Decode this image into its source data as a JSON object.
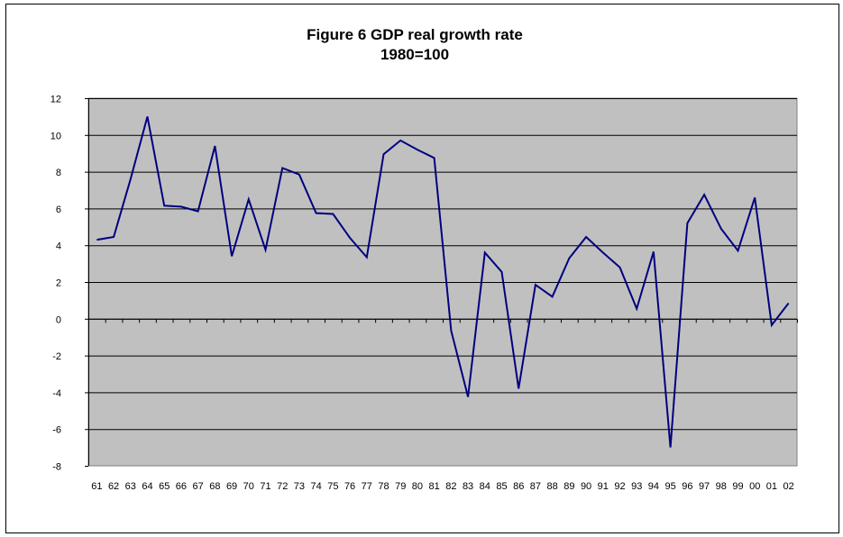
{
  "chart_data": {
    "type": "line",
    "title": "Figure 6 GDP real growth rate",
    "subtitle": "1980=100",
    "xlabel": "",
    "ylabel": "",
    "ylim": [
      -8,
      12
    ],
    "yticks": [
      12,
      10,
      8,
      6,
      4,
      2,
      0,
      -2,
      -4,
      -6,
      -8
    ],
    "grid": true,
    "legend": "none",
    "colors": {
      "line": "#000080",
      "plot_bg": "#c0c0c0",
      "grid": "#000000"
    },
    "categories": [
      "61",
      "62",
      "63",
      "64",
      "65",
      "66",
      "67",
      "68",
      "69",
      "70",
      "71",
      "72",
      "73",
      "74",
      "75",
      "76",
      "77",
      "78",
      "79",
      "80",
      "81",
      "82",
      "83",
      "84",
      "85",
      "86",
      "87",
      "88",
      "89",
      "90",
      "91",
      "92",
      "93",
      "94",
      "95",
      "96",
      "97",
      "98",
      "99",
      "00",
      "01",
      "02"
    ],
    "series": [
      {
        "values": [
          4.3,
          4.45,
          7.6,
          11.0,
          6.15,
          6.1,
          5.85,
          9.4,
          3.4,
          6.5,
          3.75,
          8.2,
          7.85,
          5.75,
          5.7,
          4.4,
          3.35,
          8.95,
          9.7,
          9.2,
          8.75,
          -0.65,
          -4.25,
          3.6,
          2.55,
          -3.8,
          1.85,
          1.2,
          3.3,
          4.45,
          3.6,
          2.8,
          0.55,
          3.65,
          -7.0,
          5.2,
          6.75,
          4.9,
          3.7,
          6.6,
          -0.35,
          0.85
        ]
      }
    ]
  }
}
